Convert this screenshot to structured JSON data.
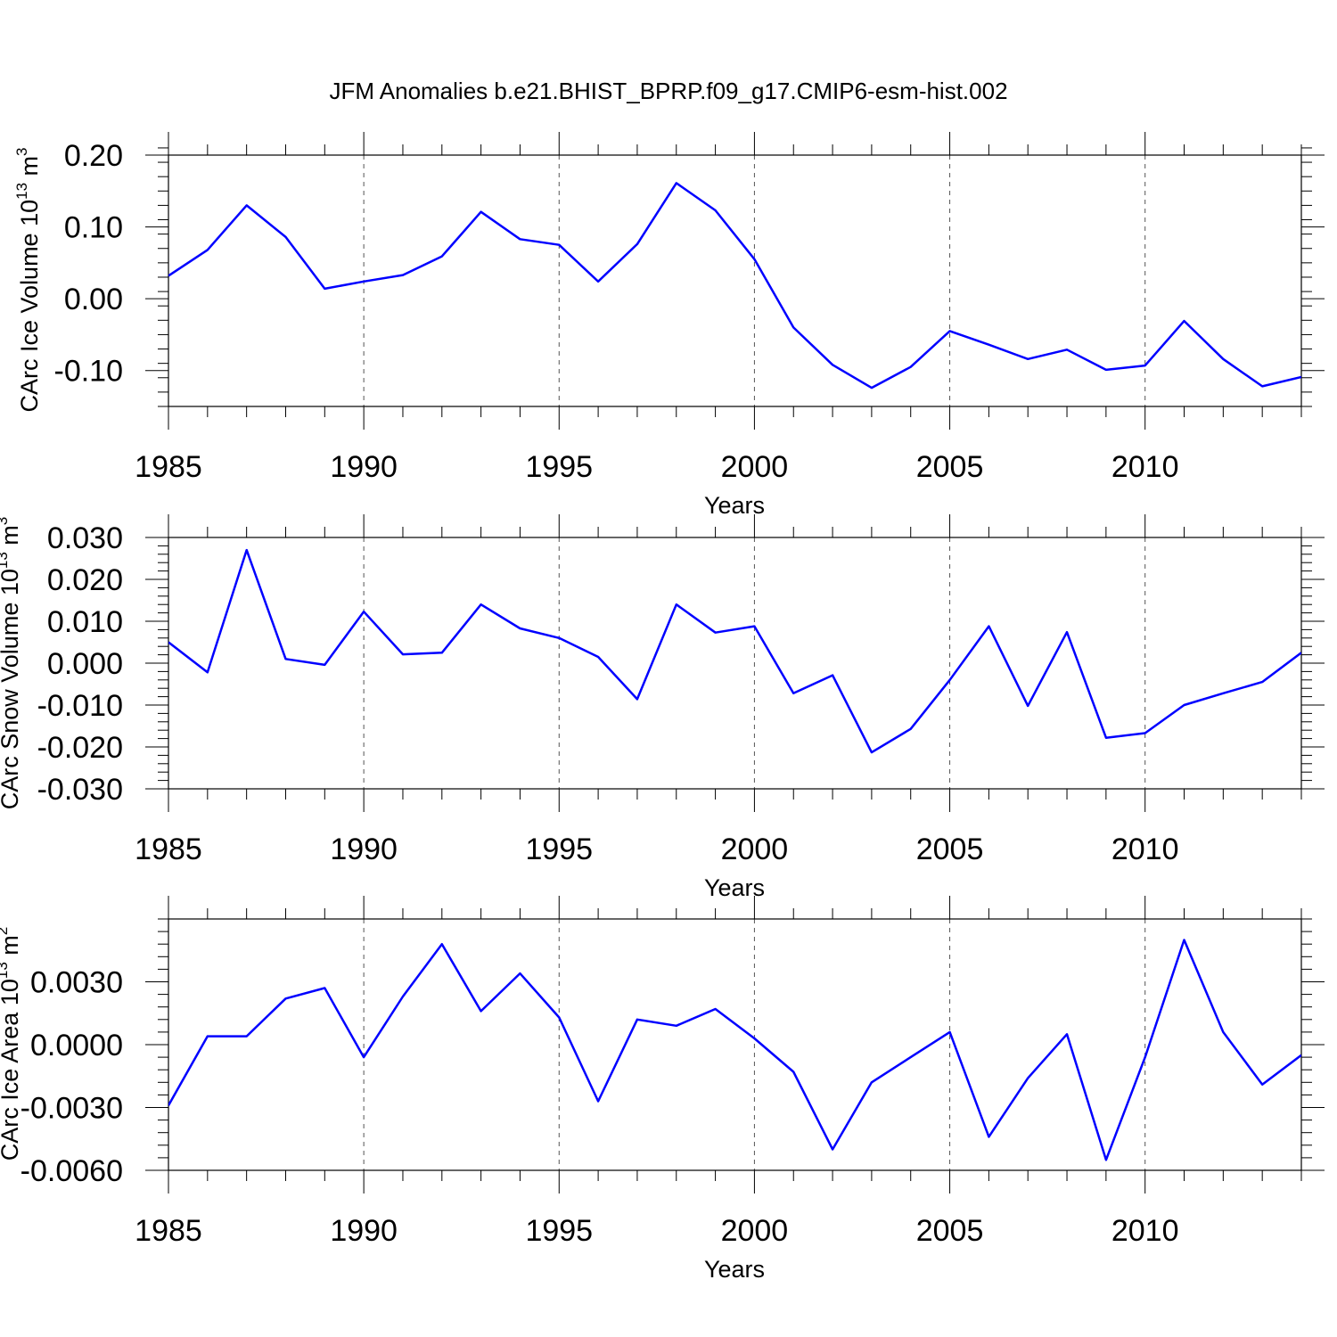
{
  "title": "JFM Anomalies b.e21.BHIST_BPRP.f09_g17.CMIP6-esm-hist.002",
  "chart_data": [
    {
      "type": "line",
      "ylabel": "CArc Ice Volume 10",
      "ylabel_sup": "13",
      "ylabel_unit": " m",
      "ylabel_unit_sup": "3",
      "xlabel": "Years",
      "xlim": [
        1985,
        2014
      ],
      "ylim": [
        -0.15,
        0.2
      ],
      "x_ticks": [
        1985,
        1990,
        1995,
        2000,
        2005,
        2010
      ],
      "x_tick_labels": [
        "1985",
        "1990",
        "1995",
        "2000",
        "2005",
        "2010"
      ],
      "y_ticks": [
        0.2,
        0.1,
        0.0,
        -0.1
      ],
      "y_tick_labels": [
        "0.20",
        "0.10",
        "0.00",
        "-0.10"
      ],
      "y_minor_step": 0.02,
      "grid": "dashed vertical at major x ticks",
      "line_color": "#0000ff",
      "x": [
        1985,
        1986,
        1987,
        1988,
        1989,
        1990,
        1991,
        1992,
        1993,
        1994,
        1995,
        1996,
        1997,
        1998,
        1999,
        2000,
        2001,
        2002,
        2003,
        2004,
        2005,
        2006,
        2007,
        2008,
        2009,
        2010,
        2011,
        2012,
        2013,
        2014
      ],
      "y": [
        0.032,
        0.068,
        0.13,
        0.086,
        0.014,
        0.024,
        0.033,
        0.059,
        0.121,
        0.083,
        0.075,
        0.024,
        0.076,
        0.161,
        0.123,
        0.055,
        -0.04,
        -0.092,
        -0.124,
        -0.095,
        -0.045,
        -0.064,
        -0.084,
        -0.071,
        -0.099,
        -0.093,
        -0.031,
        -0.084,
        -0.122,
        -0.109
      ]
    },
    {
      "type": "line",
      "ylabel": "CArc Snow Volume 10",
      "ylabel_sup": "13",
      "ylabel_unit": " m",
      "ylabel_unit_sup": "3",
      "xlabel": "Years",
      "xlim": [
        1985,
        2014
      ],
      "ylim": [
        -0.03,
        0.03
      ],
      "x_ticks": [
        1985,
        1990,
        1995,
        2000,
        2005,
        2010
      ],
      "x_tick_labels": [
        "1985",
        "1990",
        "1995",
        "2000",
        "2005",
        "2010"
      ],
      "y_ticks": [
        0.03,
        0.02,
        0.01,
        0.0,
        -0.01,
        -0.02,
        -0.03
      ],
      "y_tick_labels": [
        "0.030",
        "0.020",
        "0.010",
        "0.000",
        "-0.010",
        "-0.020",
        "-0.030"
      ],
      "y_minor_step": 0.002,
      "grid": "dashed vertical at major x ticks",
      "line_color": "#0000ff",
      "x": [
        1985,
        1986,
        1987,
        1988,
        1989,
        1990,
        1991,
        1992,
        1993,
        1994,
        1995,
        1996,
        1997,
        1998,
        1999,
        2000,
        2001,
        2002,
        2003,
        2004,
        2005,
        2006,
        2007,
        2008,
        2009,
        2010,
        2011,
        2012,
        2013,
        2014
      ],
      "y": [
        0.005,
        -0.0022,
        0.027,
        0.001,
        -0.0004,
        0.0123,
        0.0021,
        0.0025,
        0.014,
        0.0083,
        0.006,
        0.0015,
        -0.0086,
        0.014,
        0.0073,
        0.0088,
        -0.0072,
        -0.0029,
        -0.0213,
        -0.0157,
        -0.004,
        0.0088,
        -0.0102,
        0.0074,
        -0.0178,
        -0.0167,
        -0.01,
        -0.0072,
        -0.0045,
        0.0025
      ]
    },
    {
      "type": "line",
      "ylabel": "CArc Ice Area 10",
      "ylabel_sup": "13",
      "ylabel_unit": " m",
      "ylabel_unit_sup": "2",
      "xlabel": "Years",
      "xlim": [
        1985,
        2014
      ],
      "ylim": [
        -0.006,
        0.006
      ],
      "x_ticks": [
        1985,
        1990,
        1995,
        2000,
        2005,
        2010
      ],
      "x_tick_labels": [
        "1985",
        "1990",
        "1995",
        "2000",
        "2005",
        "2010"
      ],
      "y_ticks": [
        0.003,
        0.0,
        -0.003,
        -0.006
      ],
      "y_tick_labels": [
        "0.0030",
        "0.0000",
        "-0.0030",
        "-0.0060"
      ],
      "y_minor_step": 0.0006,
      "grid": "dashed vertical at major x ticks",
      "line_color": "#0000ff",
      "x": [
        1985,
        1986,
        1987,
        1988,
        1989,
        1990,
        1991,
        1992,
        1993,
        1994,
        1995,
        1996,
        1997,
        1998,
        1999,
        2000,
        2001,
        2002,
        2003,
        2004,
        2005,
        2006,
        2007,
        2008,
        2009,
        2010,
        2011,
        2012,
        2013,
        2014
      ],
      "y": [
        -0.0029,
        0.0004,
        0.0004,
        0.0022,
        0.0027,
        -0.0006,
        0.0023,
        0.0048,
        0.0016,
        0.0034,
        0.0013,
        -0.0027,
        0.0012,
        0.0009,
        0.0017,
        0.0003,
        -0.0013,
        -0.005,
        -0.0018,
        -0.0006,
        0.0006,
        -0.0044,
        -0.0016,
        0.0005,
        -0.0055,
        -0.0006,
        0.005,
        0.0006,
        -0.0019,
        -0.0005
      ]
    }
  ]
}
